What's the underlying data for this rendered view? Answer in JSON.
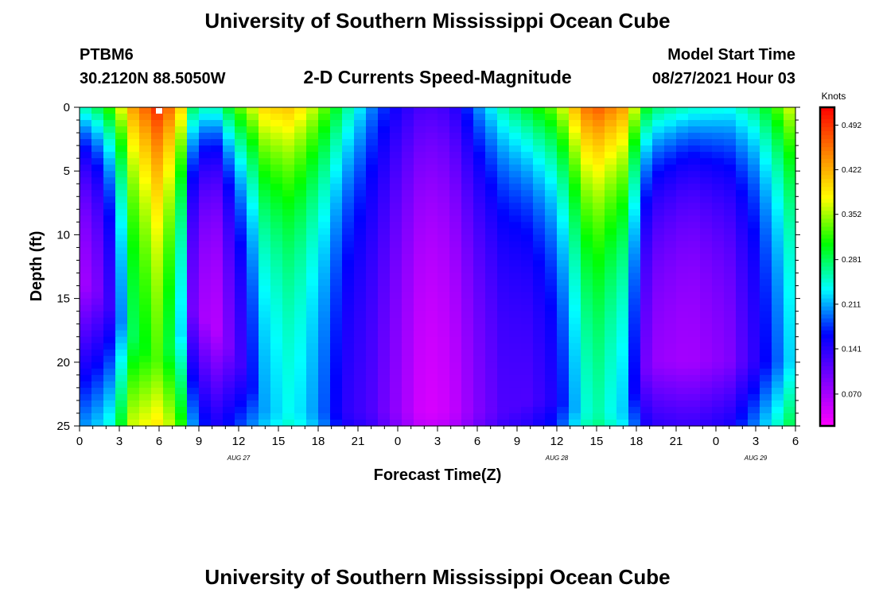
{
  "page": {
    "title_top": "University of Southern Mississippi Ocean Cube",
    "title_bottom": "University of Southern Mississippi Ocean Cube",
    "station": "PTBM6",
    "location": "30.2120N  88.5050W",
    "model_start_label": "Model Start Time",
    "model_start_value": "08/27/2021 Hour 03"
  },
  "chart_data": {
    "type": "heatmap",
    "title": "2-D Currents Speed-Magnitude",
    "xlabel": "Forecast Time(Z)",
    "ylabel": "Depth (ft)",
    "x_tick_labels": [
      "0",
      "3",
      "6",
      "9",
      "12",
      "15",
      "18",
      "21",
      "0",
      "3",
      "6",
      "9",
      "12",
      "15",
      "18",
      "21",
      "0",
      "3",
      "6"
    ],
    "x_tick_hours": [
      0,
      3,
      6,
      9,
      12,
      15,
      18,
      21,
      24,
      27,
      30,
      33,
      36,
      39,
      42,
      45,
      48,
      51,
      54
    ],
    "date_labels": [
      {
        "text": "AUG  27",
        "hour": 12
      },
      {
        "text": "AUG  28",
        "hour": 36
      },
      {
        "text": "AUG  29",
        "hour": 51
      }
    ],
    "x_range_hours": [
      0,
      54
    ],
    "y_tick_labels": [
      "0",
      "5",
      "10",
      "15",
      "20",
      "25"
    ],
    "y_ticks_ft": [
      0,
      5,
      10,
      15,
      20,
      25
    ],
    "y_range_ft": [
      0,
      25
    ],
    "y_reversed": true,
    "colorbar": {
      "title": "Knots",
      "tick_labels": [
        "0.492",
        "0.422",
        "0.352",
        "0.281",
        "0.211",
        "0.141",
        "0.070"
      ],
      "tick_values": [
        0.492,
        0.422,
        0.352,
        0.281,
        0.211,
        0.141,
        0.07
      ],
      "range": [
        0.02,
        0.52
      ],
      "colors": [
        "#ff00ff",
        "#8000ff",
        "#0000ff",
        "#00ffff",
        "#00ff00",
        "#ffff00",
        "#ff8000",
        "#ff0000"
      ]
    },
    "grid": {
      "cols": 60,
      "rows": 50
    },
    "marker": {
      "hour": 6,
      "depth_ft": 0.3,
      "color": "#ffffff"
    },
    "speed_model_knots": {
      "columns": [
        {
          "hour": 0,
          "surface": 0.25,
          "bottom": 0.07,
          "decay_ft": 5,
          "min_depth_ft": 14
        },
        {
          "hour": 1,
          "surface": 0.27,
          "bottom": 0.08,
          "decay_ft": 5,
          "min_depth_ft": 14
        },
        {
          "hour": 2.5,
          "surface": 0.33,
          "bottom": 0.14,
          "decay_ft": 6,
          "min_depth_ft": 16
        },
        {
          "hour": 4,
          "surface": 0.43,
          "bottom": 0.28,
          "decay_ft": 8,
          "min_depth_ft": 18
        },
        {
          "hour": 6,
          "surface": 0.5,
          "bottom": 0.33,
          "decay_ft": 10,
          "min_depth_ft": 20
        },
        {
          "hour": 7.5,
          "surface": 0.42,
          "bottom": 0.25,
          "decay_ft": 8,
          "min_depth_ft": 18
        },
        {
          "hour": 8.5,
          "surface": 0.28,
          "bottom": 0.1,
          "decay_ft": 6,
          "min_depth_ft": 16
        },
        {
          "hour": 10,
          "surface": 0.24,
          "bottom": 0.05,
          "decay_ft": 5,
          "min_depth_ft": 17
        },
        {
          "hour": 12,
          "surface": 0.33,
          "bottom": 0.12,
          "decay_ft": 7,
          "min_depth_ft": 20
        },
        {
          "hour": 14,
          "surface": 0.4,
          "bottom": 0.21,
          "decay_ft": 9,
          "min_depth_ft": 24
        },
        {
          "hour": 16,
          "surface": 0.41,
          "bottom": 0.24,
          "decay_ft": 9,
          "min_depth_ft": 24
        },
        {
          "hour": 18,
          "surface": 0.35,
          "bottom": 0.2,
          "decay_ft": 9,
          "min_depth_ft": 24
        },
        {
          "hour": 20,
          "surface": 0.27,
          "bottom": 0.14,
          "decay_ft": 9,
          "min_depth_ft": 24
        },
        {
          "hour": 22,
          "surface": 0.2,
          "bottom": 0.12,
          "decay_ft": 9,
          "min_depth_ft": 24
        },
        {
          "hour": 24,
          "surface": 0.15,
          "bottom": 0.08,
          "decay_ft": 10,
          "min_depth_ft": 24
        },
        {
          "hour": 26,
          "surface": 0.12,
          "bottom": 0.04,
          "decay_ft": 10,
          "min_depth_ft": 24
        },
        {
          "hour": 28,
          "surface": 0.13,
          "bottom": 0.05,
          "decay_ft": 10,
          "min_depth_ft": 24
        },
        {
          "hour": 30,
          "surface": 0.2,
          "bottom": 0.09,
          "decay_ft": 9,
          "min_depth_ft": 24
        },
        {
          "hour": 32,
          "surface": 0.26,
          "bottom": 0.12,
          "decay_ft": 8,
          "min_depth_ft": 24
        },
        {
          "hour": 34,
          "surface": 0.3,
          "bottom": 0.12,
          "decay_ft": 8,
          "min_depth_ft": 23
        },
        {
          "hour": 36,
          "surface": 0.34,
          "bottom": 0.15,
          "decay_ft": 9,
          "min_depth_ft": 23
        },
        {
          "hour": 38,
          "surface": 0.45,
          "bottom": 0.24,
          "decay_ft": 10,
          "min_depth_ft": 24
        },
        {
          "hour": 39,
          "surface": 0.47,
          "bottom": 0.26,
          "decay_ft": 10,
          "min_depth_ft": 24
        },
        {
          "hour": 41,
          "surface": 0.43,
          "bottom": 0.22,
          "decay_ft": 10,
          "min_depth_ft": 24
        },
        {
          "hour": 43,
          "surface": 0.28,
          "bottom": 0.08,
          "decay_ft": 7,
          "min_depth_ft": 20
        },
        {
          "hour": 46,
          "surface": 0.25,
          "bottom": 0.07,
          "decay_ft": 6,
          "min_depth_ft": 20
        },
        {
          "hour": 49,
          "surface": 0.24,
          "bottom": 0.09,
          "decay_ft": 7,
          "min_depth_ft": 20
        },
        {
          "hour": 51,
          "surface": 0.27,
          "bottom": 0.14,
          "decay_ft": 7,
          "min_depth_ft": 20
        },
        {
          "hour": 53,
          "surface": 0.34,
          "bottom": 0.2,
          "decay_ft": 8,
          "min_depth_ft": 20
        },
        {
          "hour": 54,
          "surface": 0.38,
          "bottom": 0.24,
          "decay_ft": 8,
          "min_depth_ft": 20
        }
      ],
      "note": "approximate speed (knots) read from colors: surface value, bottom (minimum) value, vertical decay scale and depth of minimum per forecast hour"
    }
  }
}
